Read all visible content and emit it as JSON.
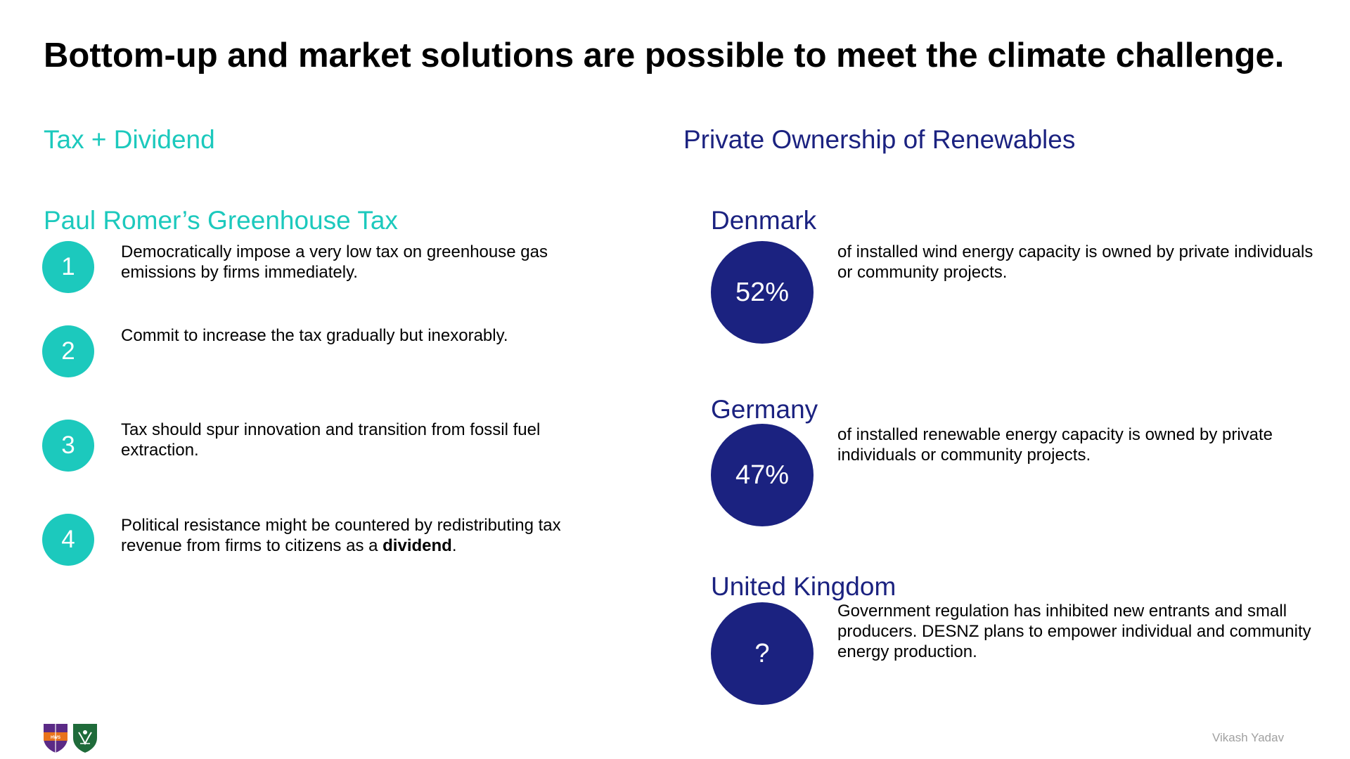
{
  "title": "Bottom-up and market solutions are possible to meet the climate challenge.",
  "left": {
    "heading": "Tax + Dividend",
    "subheading": "Paul Romer’s Greenhouse Tax",
    "steps": [
      {
        "number": "1",
        "text": "Democratically impose a very low tax on greenhouse gas emissions by firms immediately."
      },
      {
        "number": "2",
        "text": "Commit to increase the tax gradually but inexorably."
      },
      {
        "number": "3",
        "text": "Tax should spur innovation and transition from fossil fuel extraction."
      },
      {
        "number": "4",
        "text_before": "Political resistance might be countered by redistributing tax revenue from firms to citizens as a ",
        "text_bold": "dividend",
        "text_after": "."
      }
    ]
  },
  "right": {
    "heading": "Private Ownership of Renewables",
    "countries": [
      {
        "name": "Denmark",
        "value": "52%",
        "text": "of installed wind energy capacity is owned by private individuals or community projects."
      },
      {
        "name": "Germany",
        "value": "47%",
        "text": "of installed renewable energy capacity is owned by private individuals or community projects."
      },
      {
        "name": "United Kingdom",
        "value": "?",
        "text": "Government regulation has inhibited new entrants and small producers. DESNZ plans to empower individual and community energy production."
      }
    ]
  },
  "footer": {
    "author": "Vikash Yadav",
    "logo1_text": "HWS"
  },
  "colors": {
    "teal": "#1cc9bd",
    "navy": "#1b2280",
    "logo_purple": "#5b2a86",
    "logo_orange": "#e8731c",
    "logo_green": "#1f6b3a"
  }
}
